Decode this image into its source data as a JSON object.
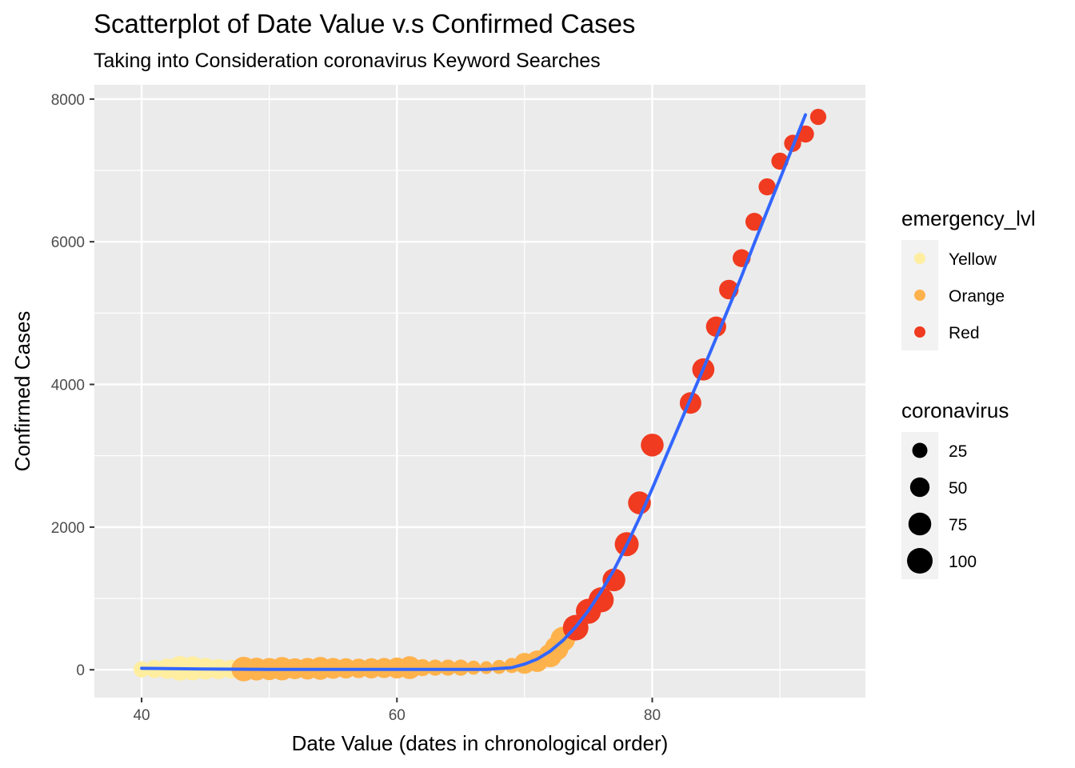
{
  "chart_data": {
    "type": "scatter",
    "title": "Scatterplot of Date Value v.s Confirmed Cases",
    "subtitle": "Taking into Consideration coronavirus Keyword Searches",
    "xlabel": "Date Value (dates in chronological order)",
    "ylabel": "Confirmed Cases",
    "xlim": [
      36.3,
      96.7
    ],
    "ylim": [
      -390,
      8200
    ],
    "x_ticks": [
      40,
      60,
      80
    ],
    "x_tick_labels": [
      "40",
      "60",
      "80"
    ],
    "y_ticks": [
      0,
      2000,
      4000,
      6000,
      8000
    ],
    "y_tick_labels": [
      "0",
      "2000",
      "4000",
      "6000",
      "8000"
    ],
    "grid": true,
    "legend_position": "right",
    "colors": {
      "Yellow": "#FFEDA0",
      "Orange": "#FEB24C",
      "Red": "#F03B20",
      "smooth_line": "#3366FF",
      "panel_bg": "#EBEBEB"
    },
    "color_legend": {
      "title": "emergency_lvl",
      "entries": [
        "Yellow",
        "Orange",
        "Red"
      ]
    },
    "size_legend": {
      "title": "coronavirus",
      "values": [
        25,
        50,
        75,
        100
      ],
      "labels": [
        "25",
        "50",
        "75",
        "100"
      ]
    },
    "series": [
      {
        "name": "Yellow",
        "points": [
          {
            "x": 40,
            "y": 5,
            "size": 30
          },
          {
            "x": 41,
            "y": 10,
            "size": 40
          },
          {
            "x": 42,
            "y": 15,
            "size": 55
          },
          {
            "x": 43,
            "y": 20,
            "size": 90
          },
          {
            "x": 44,
            "y": 20,
            "size": 85
          },
          {
            "x": 45,
            "y": 15,
            "size": 65
          },
          {
            "x": 46,
            "y": 10,
            "size": 55
          },
          {
            "x": 47,
            "y": 10,
            "size": 45
          }
        ]
      },
      {
        "name": "Orange",
        "points": [
          {
            "x": 48,
            "y": 10,
            "size": 90
          },
          {
            "x": 49,
            "y": 10,
            "size": 75
          },
          {
            "x": 50,
            "y": 10,
            "size": 70
          },
          {
            "x": 51,
            "y": 15,
            "size": 80
          },
          {
            "x": 52,
            "y": 15,
            "size": 60
          },
          {
            "x": 53,
            "y": 15,
            "size": 65
          },
          {
            "x": 54,
            "y": 20,
            "size": 75
          },
          {
            "x": 55,
            "y": 20,
            "size": 60
          },
          {
            "x": 56,
            "y": 20,
            "size": 55
          },
          {
            "x": 57,
            "y": 20,
            "size": 50
          },
          {
            "x": 58,
            "y": 20,
            "size": 55
          },
          {
            "x": 59,
            "y": 25,
            "size": 55
          },
          {
            "x": 60,
            "y": 25,
            "size": 60
          },
          {
            "x": 61,
            "y": 30,
            "size": 75
          },
          {
            "x": 62,
            "y": 30,
            "size": 35
          },
          {
            "x": 63,
            "y": 30,
            "size": 30
          },
          {
            "x": 64,
            "y": 30,
            "size": 30
          },
          {
            "x": 65,
            "y": 30,
            "size": 30
          },
          {
            "x": 66,
            "y": 30,
            "size": 20
          },
          {
            "x": 67,
            "y": 30,
            "size": 15
          },
          {
            "x": 68,
            "y": 40,
            "size": 20
          },
          {
            "x": 69,
            "y": 60,
            "size": 25
          },
          {
            "x": 70,
            "y": 90,
            "size": 60
          },
          {
            "x": 71,
            "y": 120,
            "size": 65
          },
          {
            "x": 72,
            "y": 200,
            "size": 80
          },
          {
            "x": 72.5,
            "y": 300,
            "size": 85
          },
          {
            "x": 73,
            "y": 430,
            "size": 90
          }
        ]
      },
      {
        "name": "Red",
        "points": [
          {
            "x": 74,
            "y": 590,
            "size": 100
          },
          {
            "x": 75,
            "y": 820,
            "size": 95
          },
          {
            "x": 76,
            "y": 980,
            "size": 95
          },
          {
            "x": 77,
            "y": 1260,
            "size": 75
          },
          {
            "x": 78,
            "y": 1760,
            "size": 85
          },
          {
            "x": 79,
            "y": 2340,
            "size": 75
          },
          {
            "x": 80,
            "y": 3150,
            "size": 75
          },
          {
            "x": 83,
            "y": 3740,
            "size": 65
          },
          {
            "x": 84,
            "y": 4210,
            "size": 70
          },
          {
            "x": 85,
            "y": 4810,
            "size": 55
          },
          {
            "x": 86,
            "y": 5330,
            "size": 50
          },
          {
            "x": 87,
            "y": 5770,
            "size": 40
          },
          {
            "x": 88,
            "y": 6280,
            "size": 40
          },
          {
            "x": 89,
            "y": 6770,
            "size": 35
          },
          {
            "x": 90,
            "y": 7130,
            "size": 35
          },
          {
            "x": 91,
            "y": 7380,
            "size": 35
          },
          {
            "x": 92,
            "y": 7510,
            "size": 35
          },
          {
            "x": 93,
            "y": 7750,
            "size": 30
          }
        ]
      }
    ],
    "smooth_line": {
      "x": [
        40,
        45,
        50,
        55,
        60,
        65,
        67,
        69,
        70,
        71,
        72,
        73,
        74,
        75,
        76,
        77,
        78,
        79,
        80,
        81,
        82,
        83,
        84,
        85,
        86,
        87,
        88,
        89,
        90,
        91,
        92
      ],
      "y": [
        20,
        10,
        5,
        5,
        5,
        5,
        5,
        30,
        80,
        150,
        260,
        410,
        600,
        830,
        1100,
        1400,
        1750,
        2130,
        2540,
        2960,
        3380,
        3800,
        4220,
        4650,
        5080,
        5520,
        5980,
        6430,
        6880,
        7330,
        7780
      ]
    }
  }
}
